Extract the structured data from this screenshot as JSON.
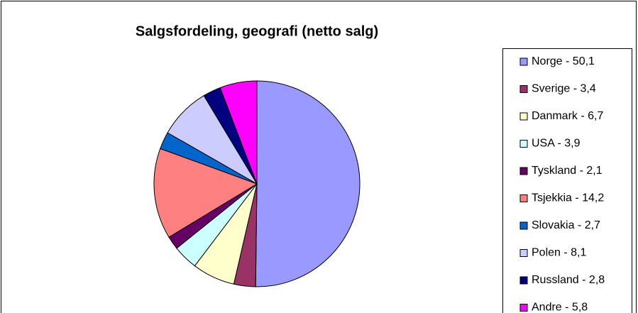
{
  "chart_data": {
    "type": "pie",
    "title": "Salgsfordeling, geografi (netto salg)",
    "categories": [
      "Norge -  50,1",
      "Sverige - 3,4",
      "Danmark - 6,7",
      "USA - 3,9",
      "Tyskland - 2,1",
      "Tsjekkia - 14,2",
      "Slovakia - 2,7",
      "Polen - 8,1",
      "Russland - 2,8",
      "Andre - 5,8"
    ],
    "values": [
      50.1,
      3.4,
      6.7,
      3.9,
      2.1,
      14.2,
      2.7,
      8.1,
      2.8,
      5.8
    ],
    "colors": [
      "#9999ff",
      "#993366",
      "#ffffcc",
      "#ccffff",
      "#660066",
      "#ff8080",
      "#0066cc",
      "#ccccff",
      "#000080",
      "#ff00ff"
    ],
    "legend": "right"
  }
}
